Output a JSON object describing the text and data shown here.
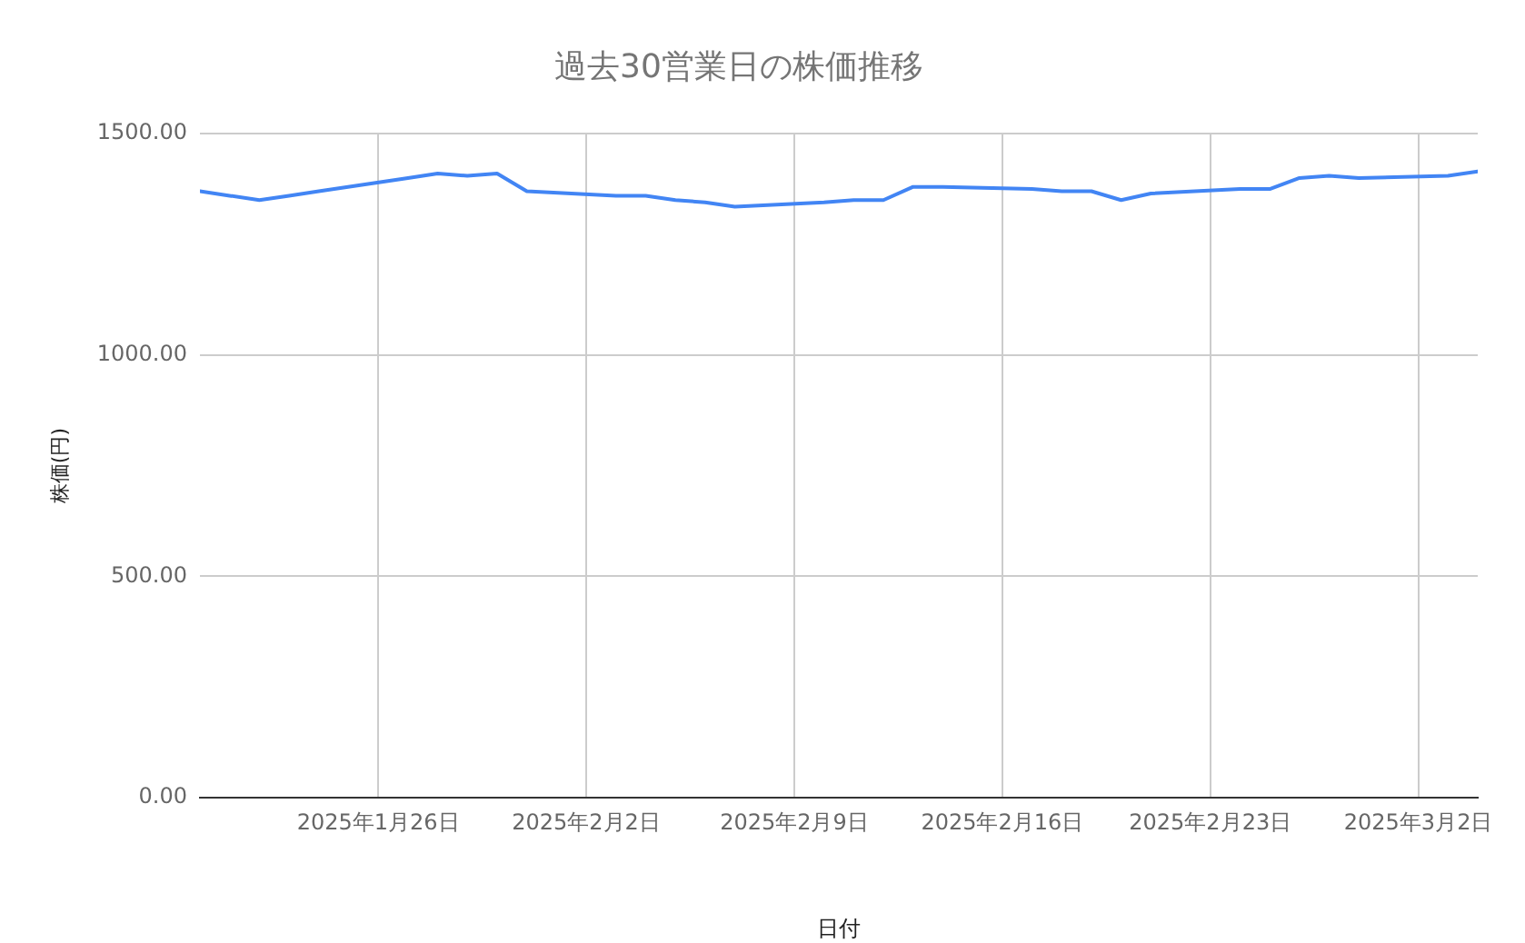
{
  "chart_data": {
    "type": "line",
    "title": "過去30営業日の株価推移",
    "xlabel": "日付",
    "ylabel": "株価(円)",
    "x": [
      "2025-01-20",
      "2025-01-21",
      "2025-01-22",
      "2025-01-23",
      "2025-01-24",
      "2025-01-27",
      "2025-01-28",
      "2025-01-29",
      "2025-01-30",
      "2025-01-31",
      "2025-02-03",
      "2025-02-04",
      "2025-02-05",
      "2025-02-06",
      "2025-02-07",
      "2025-02-10",
      "2025-02-11",
      "2025-02-12",
      "2025-02-13",
      "2025-02-14",
      "2025-02-17",
      "2025-02-18",
      "2025-02-19",
      "2025-02-20",
      "2025-02-21",
      "2025-02-24",
      "2025-02-25",
      "2025-02-26",
      "2025-02-27",
      "2025-02-28",
      "2025-03-03",
      "2025-03-04"
    ],
    "series": [
      {
        "color": "#4285f4",
        "values": [
          1370,
          1360,
          1350,
          1360,
          1370,
          1400,
          1410,
          1405,
          1410,
          1370,
          1360,
          1360,
          1350,
          1345,
          1335,
          1345,
          1350,
          1350,
          1380,
          1380,
          1375,
          1370,
          1370,
          1350,
          1365,
          1375,
          1375,
          1400,
          1405,
          1400,
          1405,
          1415
        ]
      }
    ],
    "xlim": [
      "2025-01-20",
      "2025-03-04"
    ],
    "xticks": [
      {
        "value": "2025-01-26",
        "label": "2025年1月26日"
      },
      {
        "value": "2025-02-02",
        "label": "2025年2月2日"
      },
      {
        "value": "2025-02-09",
        "label": "2025年2月9日"
      },
      {
        "value": "2025-02-16",
        "label": "2025年2月16日"
      },
      {
        "value": "2025-02-23",
        "label": "2025年2月23日"
      },
      {
        "value": "2025-03-02",
        "label": "2025年3月2日"
      }
    ],
    "ylim": [
      0,
      1500
    ],
    "yticks": [
      {
        "value": 0,
        "label": "0.00"
      },
      {
        "value": 500,
        "label": "500.00"
      },
      {
        "value": 1000,
        "label": "1000.00"
      },
      {
        "value": 1500,
        "label": "1500.00"
      }
    ],
    "grid": true,
    "marker": "none",
    "line_style": "solid"
  }
}
